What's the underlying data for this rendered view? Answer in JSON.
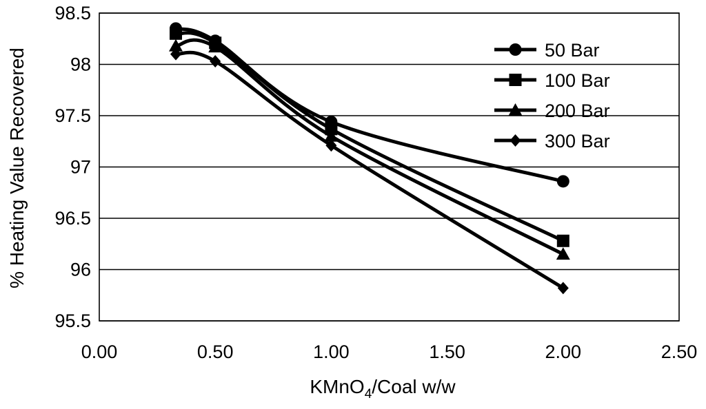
{
  "chart_data": {
    "type": "line",
    "title": "",
    "xlabel": "KMnO4/Coal w/w",
    "xlabel_parts": {
      "pre": "KMnO",
      "sub": "4",
      "post": "/Coal w/w"
    },
    "ylabel": "% Heating Value Recovered",
    "xlim": [
      0,
      2.5
    ],
    "ylim": [
      95.5,
      98.5
    ],
    "x_ticks": [
      0,
      0.5,
      1,
      1.5,
      2,
      2.5
    ],
    "x_tick_labels": [
      "0.00",
      "0.50",
      "1.00",
      "1.50",
      "2.00",
      "2.50"
    ],
    "y_ticks": [
      95.5,
      96,
      96.5,
      97,
      97.5,
      98,
      98.5
    ],
    "y_tick_labels": [
      "95.5",
      "96",
      "96.5",
      "97",
      "97.5",
      "98",
      "98.5"
    ],
    "grid": {
      "horizontal": true,
      "vertical": false
    },
    "legend_position": "top-right",
    "smooth_lines": true,
    "series": [
      {
        "name": "50 Bar",
        "marker": "circle",
        "color": "#000000",
        "x": [
          0.33,
          0.5,
          1.0,
          2.0
        ],
        "y": [
          98.35,
          98.23,
          97.44,
          96.86
        ]
      },
      {
        "name": "100 Bar",
        "marker": "square",
        "color": "#000000",
        "x": [
          0.33,
          0.5,
          1.0,
          2.0
        ],
        "y": [
          98.3,
          98.21,
          97.37,
          96.28
        ]
      },
      {
        "name": "200 Bar",
        "marker": "triangle",
        "color": "#000000",
        "x": [
          0.33,
          0.5,
          1.0,
          2.0
        ],
        "y": [
          98.18,
          98.17,
          97.3,
          96.15
        ]
      },
      {
        "name": "300 Bar",
        "marker": "diamond",
        "color": "#000000",
        "x": [
          0.33,
          0.5,
          1.0,
          2.0
        ],
        "y": [
          98.1,
          98.03,
          97.21,
          95.82
        ]
      }
    ]
  }
}
